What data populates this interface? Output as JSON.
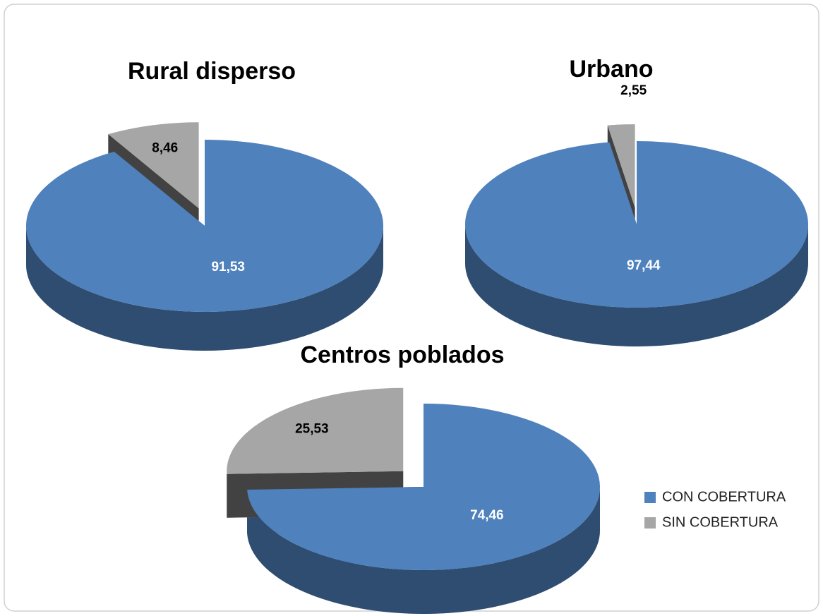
{
  "chart_data": [
    {
      "type": "pie",
      "title": "Rural disperso",
      "categories": [
        "CON COBERTURA",
        "SIN COBERTURA"
      ],
      "values": [
        91.53,
        8.46
      ],
      "value_labels": [
        "91,53",
        "8,46"
      ],
      "colors": [
        "#4f81bd",
        "#a6a6a6"
      ]
    },
    {
      "type": "pie",
      "title": "Urbano",
      "categories": [
        "CON COBERTURA",
        "SIN COBERTURA"
      ],
      "values": [
        97.44,
        2.55
      ],
      "value_labels": [
        "97,44",
        "2,55"
      ],
      "colors": [
        "#4f81bd",
        "#a6a6a6"
      ]
    },
    {
      "type": "pie",
      "title": "Centros poblados",
      "categories": [
        "CON COBERTURA",
        "SIN COBERTURA"
      ],
      "values": [
        74.46,
        25.53
      ],
      "value_labels": [
        "74,46",
        "25,53"
      ],
      "colors": [
        "#4f81bd",
        "#a6a6a6"
      ]
    }
  ]
}
